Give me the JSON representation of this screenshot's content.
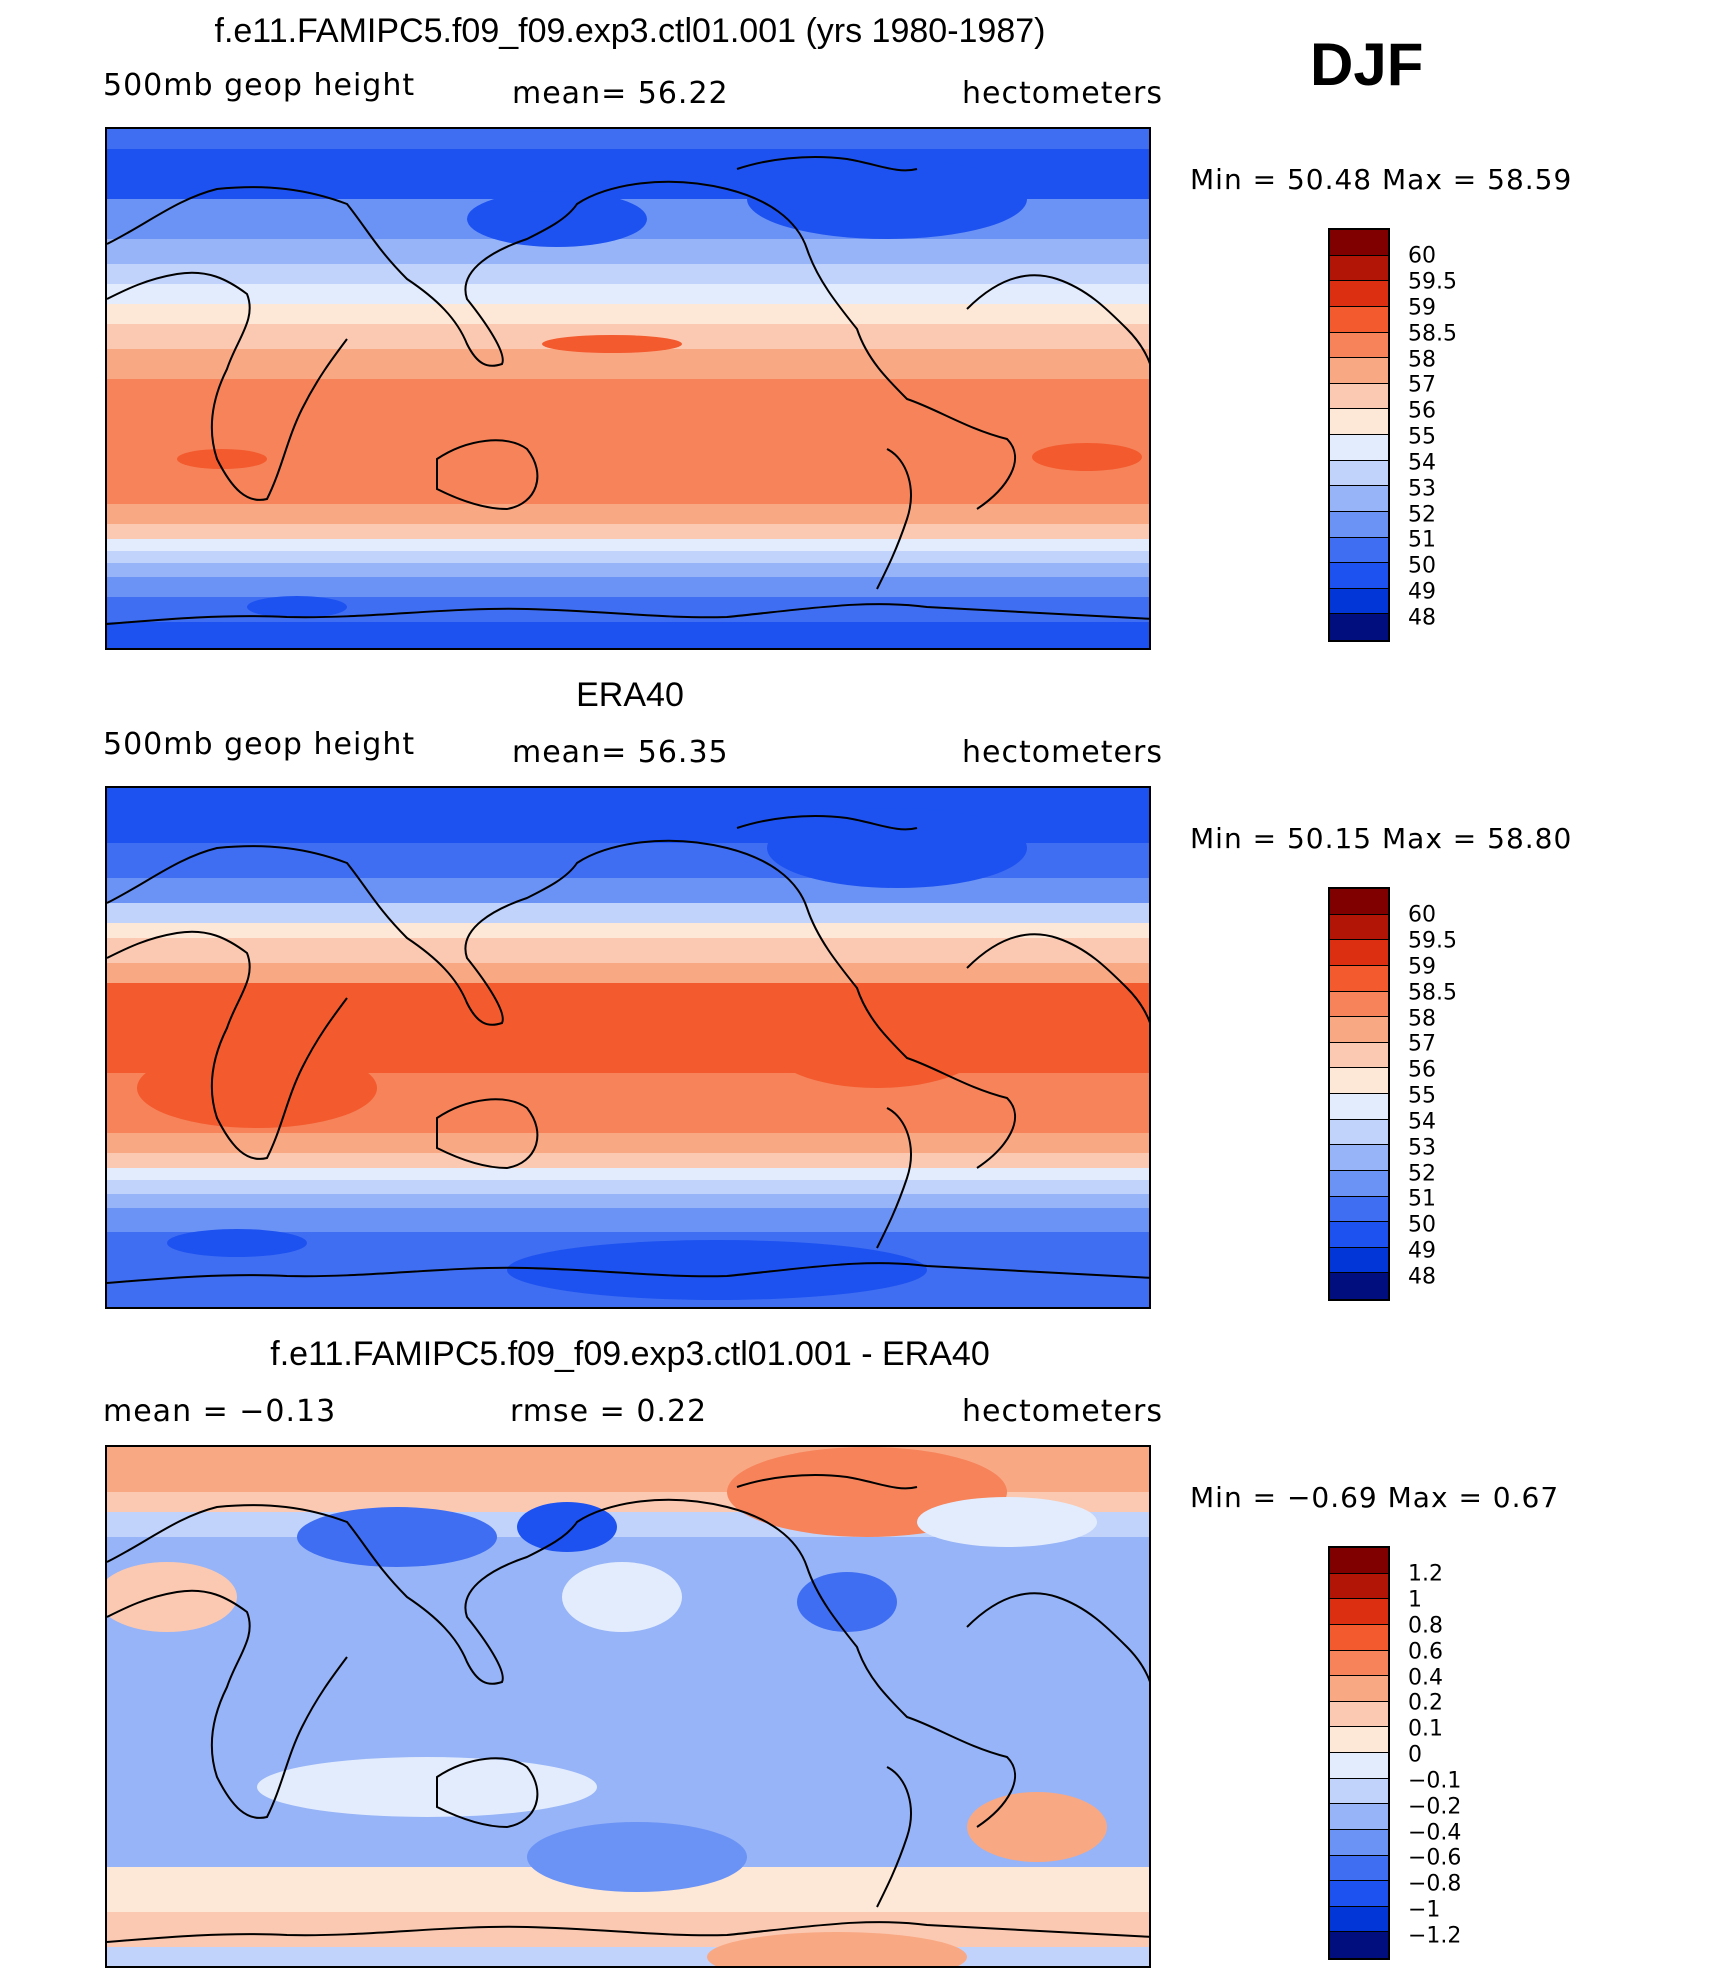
{
  "season": "DJF",
  "colors": {
    "scale": [
      "#000e7e",
      "#001ca8",
      "#0236d6",
      "#1d52f0",
      "#3f6ef2",
      "#6b93f5",
      "#96b4f7",
      "#c1d3fa",
      "#e3ecfc",
      "#fde7d6",
      "#fbc9b1",
      "#f9a884",
      "#f6835a",
      "#f35a2e",
      "#dc2e10",
      "#b21405",
      "#800000"
    ]
  },
  "panels": [
    {
      "title": "f.e11.FAMIPC5.f09_f09.exp3.ctl01.001 (yrs 1980-1987)",
      "left_label": "500mb  geop  height",
      "center_label": "mean=   56.22",
      "right_label": "hectometers",
      "min_max": "Min  =    50.48  Max  =    58.59",
      "colorbar_labels": [
        "60",
        "59.5",
        "59",
        "58.5",
        "58",
        "57",
        "56",
        "55",
        "54",
        "53",
        "52",
        "51",
        "50",
        "49",
        "48"
      ]
    },
    {
      "title": "ERA40",
      "left_label": "500mb  geop  height",
      "center_label": "mean=   56.35",
      "right_label": "hectometers",
      "min_max": "Min  =    50.15  Max  =    58.80",
      "colorbar_labels": [
        "60",
        "59.5",
        "59",
        "58.5",
        "58",
        "57",
        "56",
        "55",
        "54",
        "53",
        "52",
        "51",
        "50",
        "49",
        "48"
      ]
    },
    {
      "title": "f.e11.FAMIPC5.f09_f09.exp3.ctl01.001 - ERA40",
      "left_label": "mean  =    −0.13",
      "center_label": "rmse  =     0.22",
      "right_label": "hectometers",
      "min_max": "Min  =    −0.69  Max  =     0.67",
      "colorbar_labels": [
        "1.2",
        "1",
        "0.8",
        "0.6",
        "0.4",
        "0.2",
        "0.1",
        "0",
        "−0.1",
        "−0.2",
        "−0.4",
        "−0.6",
        "−0.8",
        "−1",
        "−1.2"
      ]
    }
  ]
}
